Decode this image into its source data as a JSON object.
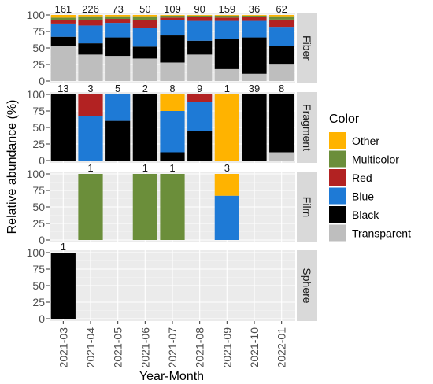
{
  "chart_data": {
    "type": "bar",
    "stacked": true,
    "xlabel": "Year-Month",
    "ylabel": "Relative abundance (%)",
    "ylim": [
      0,
      100
    ],
    "y_ticks": [
      0,
      25,
      50,
      75,
      100
    ],
    "grid": true,
    "categories": [
      "2021-03",
      "2021-04",
      "2021-05",
      "2021-06",
      "2021-07",
      "2021-08",
      "2021-09",
      "2021-10",
      "2022-01"
    ],
    "legend": {
      "title": "Color",
      "position": "right",
      "items": [
        {
          "label": "Other",
          "color": "#FFB300"
        },
        {
          "label": "Multicolor",
          "color": "#6B8E3A"
        },
        {
          "label": "Red",
          "color": "#B22222"
        },
        {
          "label": "Blue",
          "color": "#1E7AD6"
        },
        {
          "label": "Black",
          "color": "#000000"
        },
        {
          "label": "Transparent",
          "color": "#BEBEBE"
        }
      ]
    },
    "stack_order_bottom_to_top": [
      "Transparent",
      "Black",
      "Blue",
      "Red",
      "Multicolor",
      "Other"
    ],
    "facets": [
      {
        "name": "Fiber",
        "counts": [
          "",
          "161",
          "226",
          "73",
          "50",
          "109",
          "90",
          "159",
          "36",
          "62"
        ],
        "bars": [
          {
            "category": "2021-03",
            "count": "161",
            "Transparent": 53,
            "Black": 14,
            "Blue": 20,
            "Red": 5,
            "Multicolor": 4,
            "Other": 4
          },
          {
            "category": "2021-04",
            "count": "226",
            "Transparent": 40,
            "Black": 17,
            "Blue": 27,
            "Red": 8,
            "Multicolor": 6,
            "Other": 2
          },
          {
            "category": "2021-05",
            "count": "73",
            "Transparent": 38,
            "Black": 28,
            "Blue": 22,
            "Red": 6,
            "Multicolor": 4,
            "Other": 2
          },
          {
            "category": "2021-06",
            "count": "50",
            "Transparent": 34,
            "Black": 18,
            "Blue": 28,
            "Red": 12,
            "Multicolor": 6,
            "Other": 2
          },
          {
            "category": "2021-07",
            "count": "109",
            "Transparent": 28,
            "Black": 41,
            "Blue": 23,
            "Red": 4,
            "Multicolor": 3,
            "Other": 1
          },
          {
            "category": "2021-08",
            "count": "90",
            "Transparent": 40,
            "Black": 21,
            "Blue": 30,
            "Red": 6,
            "Multicolor": 2,
            "Other": 1
          },
          {
            "category": "2021-09",
            "count": "159",
            "Transparent": 18,
            "Black": 46,
            "Blue": 27,
            "Red": 5,
            "Multicolor": 3,
            "Other": 1
          },
          {
            "category": "2021-10",
            "count": "36",
            "Transparent": 11,
            "Black": 55,
            "Blue": 25,
            "Red": 6,
            "Multicolor": 2,
            "Other": 1
          },
          {
            "category": "2022-01",
            "count": "62",
            "Transparent": 26,
            "Black": 27,
            "Blue": 29,
            "Red": 11,
            "Multicolor": 5,
            "Other": 2
          }
        ]
      },
      {
        "name": "Fragment",
        "bars": [
          {
            "category": "2021-03",
            "count": "13",
            "Transparent": 0,
            "Black": 100,
            "Blue": 0,
            "Red": 0,
            "Multicolor": 0,
            "Other": 0
          },
          {
            "category": "2021-04",
            "count": "3",
            "Transparent": 0,
            "Black": 0,
            "Blue": 67,
            "Red": 33,
            "Multicolor": 0,
            "Other": 0
          },
          {
            "category": "2021-05",
            "count": "5",
            "Transparent": 0,
            "Black": 60,
            "Blue": 40,
            "Red": 0,
            "Multicolor": 0,
            "Other": 0
          },
          {
            "category": "2021-06",
            "count": "2",
            "Transparent": 0,
            "Black": 100,
            "Blue": 0,
            "Red": 0,
            "Multicolor": 0,
            "Other": 0
          },
          {
            "category": "2021-07",
            "count": "8",
            "Transparent": 0,
            "Black": 12.5,
            "Blue": 62.5,
            "Red": 0,
            "Multicolor": 0,
            "Other": 25
          },
          {
            "category": "2021-08",
            "count": "9",
            "Transparent": 0,
            "Black": 44.4,
            "Blue": 44.4,
            "Red": 11.2,
            "Multicolor": 0,
            "Other": 0
          },
          {
            "category": "2021-09",
            "count": "1",
            "Transparent": 0,
            "Black": 0,
            "Blue": 0,
            "Red": 0,
            "Multicolor": 0,
            "Other": 100
          },
          {
            "category": "2021-10",
            "count": "39",
            "Transparent": 0,
            "Black": 100,
            "Blue": 0,
            "Red": 0,
            "Multicolor": 0,
            "Other": 0
          },
          {
            "category": "2022-01",
            "count": "8",
            "Transparent": 12.5,
            "Black": 87.5,
            "Blue": 0,
            "Red": 0,
            "Multicolor": 0,
            "Other": 0
          }
        ]
      },
      {
        "name": "Film",
        "bars": [
          {
            "category": "2021-04",
            "count": "1",
            "Transparent": 0,
            "Black": 0,
            "Blue": 0,
            "Red": 0,
            "Multicolor": 100,
            "Other": 0
          },
          {
            "category": "2021-06",
            "count": "1",
            "Transparent": 0,
            "Black": 0,
            "Blue": 0,
            "Red": 0,
            "Multicolor": 100,
            "Other": 0
          },
          {
            "category": "2021-07",
            "count": "1",
            "Transparent": 0,
            "Black": 0,
            "Blue": 0,
            "Red": 0,
            "Multicolor": 100,
            "Other": 0
          },
          {
            "category": "2021-09",
            "count": "3",
            "Transparent": 0,
            "Black": 0,
            "Blue": 67,
            "Red": 0,
            "Multicolor": 0,
            "Other": 33
          }
        ]
      },
      {
        "name": "Sphere",
        "bars": [
          {
            "category": "2021-03",
            "count": "1",
            "Transparent": 0,
            "Black": 100,
            "Blue": 0,
            "Red": 0,
            "Multicolor": 0,
            "Other": 0
          }
        ]
      }
    ]
  }
}
